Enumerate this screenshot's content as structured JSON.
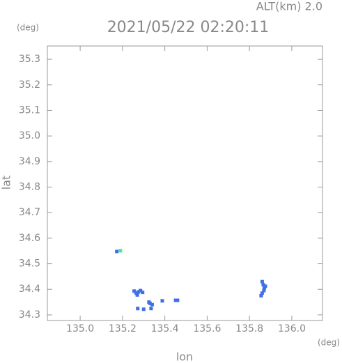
{
  "chart_data": {
    "type": "scatter",
    "title": "2021/05/22 02:20:11",
    "subtitle": "ALT(km) 2.0",
    "y_unit": "(deg)",
    "x_unit": "(deg)",
    "xlabel": "lon",
    "ylabel": "lat",
    "xlim": [
      134.845,
      136.145
    ],
    "ylim": [
      34.278,
      35.352
    ],
    "xticks": [
      {
        "value": 135,
        "label": "135.0"
      },
      135.2,
      135.4,
      135.6,
      135.8,
      {
        "value": 136,
        "label": "136.0"
      }
    ],
    "yticks": [
      34.3,
      34.4,
      34.5,
      34.6,
      34.7,
      34.8,
      34.9,
      {
        "value": 35,
        "label": "35.0"
      },
      35.1,
      35.2,
      35.3
    ],
    "series": [
      {
        "color": "#3f6fe8",
        "x": [
          135.255,
          135.265,
          135.275,
          135.285,
          135.295,
          135.27,
          135.33,
          135.34,
          135.325,
          135.335,
          135.272,
          135.3,
          135.388,
          135.451,
          135.46,
          135.86,
          135.865,
          135.87,
          135.875,
          135.868,
          135.86,
          135.855,
          135.173
        ],
        "y": [
          34.393,
          34.385,
          34.39,
          34.395,
          34.388,
          34.378,
          34.345,
          34.34,
          34.35,
          34.325,
          34.325,
          34.322,
          34.355,
          34.357,
          34.357,
          34.43,
          34.418,
          34.405,
          34.412,
          34.395,
          34.385,
          34.375,
          34.548
        ]
      },
      {
        "color": "#3ee8a0",
        "x": [
          135.19
        ],
        "y": [
          34.551
        ]
      }
    ]
  }
}
